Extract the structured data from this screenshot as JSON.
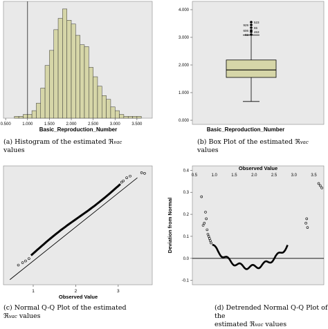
{
  "chart_data": [
    {
      "type": "bar",
      "panel": "histogram",
      "xlabel": "Basic_Reproduction_Number",
      "x_ticks": [
        "0.500",
        "1.000",
        "1.500",
        "2.000",
        "2.500",
        "3.000",
        "3.500"
      ],
      "x_tick_values": [
        0.5,
        1.0,
        1.5,
        2.0,
        2.5,
        3.0,
        3.5
      ],
      "xlim": [
        0.45,
        3.85
      ],
      "ylim": [
        0,
        62
      ],
      "bin_width": 0.1,
      "bin_starts": [
        0.7,
        0.8,
        0.9,
        1.0,
        1.1,
        1.2,
        1.3,
        1.4,
        1.5,
        1.6,
        1.7,
        1.8,
        1.9,
        2.0,
        2.1,
        2.2,
        2.3,
        2.4,
        2.5,
        2.6,
        2.7,
        2.8,
        2.9,
        3.0,
        3.1,
        3.2,
        3.3,
        3.4,
        3.5
      ],
      "values": [
        1,
        1,
        2,
        2,
        4,
        8,
        16,
        28,
        36,
        47,
        53,
        58,
        52,
        50,
        44,
        39,
        38,
        27,
        22,
        17,
        12,
        10,
        6,
        4,
        2,
        1,
        1,
        1,
        1
      ],
      "reference_line_x": 1.0,
      "bar_color": "#d6d6a8",
      "caption": "(a) Histogram of the estimated ℜvac values"
    },
    {
      "type": "box",
      "panel": "boxplot",
      "xlabel": "Basic_Reproduction_Number",
      "y_ticks": [
        "0.000",
        "1.000",
        "2.000",
        "3.000",
        "4.000"
      ],
      "y_tick_values": [
        0,
        1,
        2,
        3,
        4
      ],
      "ylim": [
        -0.15,
        4.3
      ],
      "stats": {
        "min": 0.68,
        "q1": 1.55,
        "median": 1.82,
        "q3": 2.18,
        "max": 3.08
      },
      "outliers": [
        {
          "value": 3.55,
          "label": "523"
        },
        {
          "value": 3.45,
          "label": "929"
        },
        {
          "value": 3.35,
          "label": "65"
        },
        {
          "value": 3.25,
          "label": "606"
        },
        {
          "value": 3.2,
          "label": "463"
        },
        {
          "value": 3.1,
          "label": "92"
        }
      ],
      "box_color": "#d6d6a8",
      "caption": "(b) Box Plot of the estimated ℜvac values"
    },
    {
      "type": "scatter",
      "panel": "normal-qq",
      "xlabel": "Observed Value",
      "x_ticks": [
        "1",
        "2",
        "3"
      ],
      "x_tick_values": [
        1,
        2,
        3
      ],
      "xlim": [
        0.3,
        3.8
      ],
      "ylim": [
        0.3,
        3.8
      ],
      "reference_line": [
        [
          0.45,
          0.45
        ],
        [
          3.45,
          3.45
        ]
      ],
      "points": [
        [
          0.65,
          0.88
        ],
        [
          0.75,
          0.95
        ],
        [
          0.82,
          1.0
        ],
        [
          0.9,
          1.07
        ],
        [
          3.08,
          3.32
        ],
        [
          3.12,
          3.36
        ],
        [
          3.2,
          3.45
        ],
        [
          3.28,
          3.5
        ],
        [
          3.55,
          3.6
        ],
        [
          3.62,
          3.58
        ]
      ],
      "caption": "(c) Normal Q-Q Plot of the estimated ℜvac values"
    },
    {
      "type": "scatter",
      "panel": "detrended-qq",
      "title": "",
      "xlabel": "Observed Value",
      "ylabel": "Deviation from Normal",
      "x_ticks": [
        "0.5",
        "1.0",
        "1.5",
        "2.0",
        "2.5",
        "3.0",
        "3.5"
      ],
      "x_tick_values": [
        0.5,
        1.0,
        1.5,
        2.0,
        2.5,
        3.0,
        3.5
      ],
      "y_ticks": [
        "-0.1",
        "0.0",
        "0.1",
        "0.2",
        "0.3",
        "0.4"
      ],
      "y_tick_values": [
        -0.1,
        0.0,
        0.1,
        0.2,
        0.3,
        0.4
      ],
      "xlim": [
        0.45,
        3.75
      ],
      "ylim": [
        -0.12,
        0.42
      ],
      "reference_line_y": 0.0,
      "points": [
        [
          0.68,
          0.28
        ],
        [
          0.72,
          0.15
        ],
        [
          0.75,
          0.16
        ],
        [
          0.78,
          0.21
        ],
        [
          0.8,
          0.18
        ],
        [
          0.82,
          0.13
        ],
        [
          0.84,
          0.11
        ],
        [
          0.86,
          0.1
        ],
        [
          0.88,
          0.09
        ],
        [
          0.9,
          0.08
        ],
        [
          0.92,
          0.07
        ],
        [
          3.3,
          0.16
        ],
        [
          3.32,
          0.18
        ],
        [
          3.34,
          0.14
        ],
        [
          3.62,
          0.34
        ],
        [
          3.66,
          0.33
        ],
        [
          3.7,
          0.32
        ]
      ],
      "caption": "(d) Detrended Normal Q-Q Plot of the estimated ℜvac values"
    }
  ]
}
